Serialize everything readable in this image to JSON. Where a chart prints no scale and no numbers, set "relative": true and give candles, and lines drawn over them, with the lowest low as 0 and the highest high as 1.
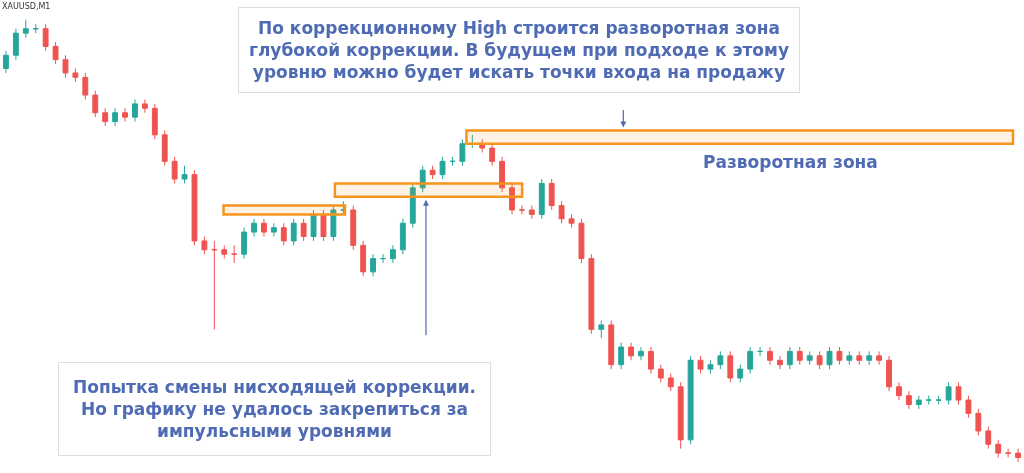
{
  "chart_data": {
    "type": "candlestick",
    "relative": true,
    "categories": [
      null,
      null,
      null,
      null,
      null,
      null,
      null,
      null,
      null,
      null,
      null,
      null,
      null,
      null,
      null,
      null,
      null,
      null,
      null,
      null,
      null,
      null,
      null,
      null,
      null,
      null,
      null,
      null,
      null,
      null,
      null,
      null,
      null,
      null,
      null,
      null,
      null,
      null,
      null,
      null,
      null,
      null,
      null,
      null,
      null,
      null,
      null,
      null,
      null,
      null,
      null,
      null,
      null,
      null,
      null,
      null,
      null,
      null,
      null,
      null,
      null,
      null,
      null,
      null,
      null,
      null,
      null,
      null,
      null,
      null,
      null,
      null,
      null,
      null,
      null,
      null,
      null,
      null,
      null,
      null,
      null,
      null,
      null,
      null,
      null,
      null,
      null,
      null,
      null,
      null,
      null,
      null,
      null,
      null,
      null,
      null,
      null,
      null,
      null,
      null,
      null,
      null,
      null
    ],
    "ohlc": [
      [
        0.89,
        0.93,
        0.88,
        0.92
      ],
      [
        0.92,
        0.98,
        0.91,
        0.97
      ],
      [
        0.97,
        1.0,
        0.96,
        0.98
      ],
      [
        0.98,
        0.99,
        0.97,
        0.98
      ],
      [
        0.98,
        0.99,
        0.93,
        0.94
      ],
      [
        0.94,
        0.95,
        0.9,
        0.91
      ],
      [
        0.91,
        0.92,
        0.87,
        0.88
      ],
      [
        0.88,
        0.89,
        0.86,
        0.87
      ],
      [
        0.87,
        0.88,
        0.82,
        0.83
      ],
      [
        0.83,
        0.84,
        0.78,
        0.79
      ],
      [
        0.79,
        0.8,
        0.76,
        0.77
      ],
      [
        0.77,
        0.8,
        0.76,
        0.79
      ],
      [
        0.79,
        0.8,
        0.77,
        0.78
      ],
      [
        0.78,
        0.82,
        0.77,
        0.81
      ],
      [
        0.81,
        0.82,
        0.79,
        0.8
      ],
      [
        0.8,
        0.81,
        0.73,
        0.74
      ],
      [
        0.74,
        0.75,
        0.67,
        0.68
      ],
      [
        0.68,
        0.69,
        0.63,
        0.64
      ],
      [
        0.64,
        0.67,
        0.63,
        0.65
      ],
      [
        0.65,
        0.66,
        0.49,
        0.5
      ],
      [
        0.5,
        0.51,
        0.47,
        0.48
      ],
      [
        0.48,
        0.5,
        0.3,
        0.48
      ],
      [
        0.48,
        0.49,
        0.46,
        0.47
      ],
      [
        0.47,
        0.49,
        0.45,
        0.47
      ],
      [
        0.47,
        0.53,
        0.46,
        0.52
      ],
      [
        0.52,
        0.55,
        0.51,
        0.54
      ],
      [
        0.54,
        0.55,
        0.51,
        0.52
      ],
      [
        0.52,
        0.54,
        0.51,
        0.53
      ],
      [
        0.53,
        0.54,
        0.49,
        0.5
      ],
      [
        0.5,
        0.55,
        0.49,
        0.54
      ],
      [
        0.54,
        0.55,
        0.5,
        0.51
      ],
      [
        0.51,
        0.57,
        0.5,
        0.56
      ],
      [
        0.56,
        0.57,
        0.5,
        0.51
      ],
      [
        0.51,
        0.58,
        0.5,
        0.57
      ],
      [
        0.57,
        0.59,
        0.56,
        0.57
      ],
      [
        0.57,
        0.58,
        0.48,
        0.49
      ],
      [
        0.49,
        0.5,
        0.42,
        0.43
      ],
      [
        0.43,
        0.47,
        0.42,
        0.46
      ],
      [
        0.46,
        0.47,
        0.45,
        0.46
      ],
      [
        0.46,
        0.49,
        0.45,
        0.48
      ],
      [
        0.48,
        0.55,
        0.47,
        0.54
      ],
      [
        0.54,
        0.63,
        0.53,
        0.62
      ],
      [
        0.62,
        0.67,
        0.61,
        0.66
      ],
      [
        0.66,
        0.67,
        0.64,
        0.65
      ],
      [
        0.65,
        0.69,
        0.64,
        0.68
      ],
      [
        0.68,
        0.69,
        0.67,
        0.68
      ],
      [
        0.68,
        0.73,
        0.67,
        0.72
      ],
      [
        0.72,
        0.74,
        0.71,
        0.72
      ],
      [
        0.72,
        0.73,
        0.7,
        0.71
      ],
      [
        0.71,
        0.72,
        0.67,
        0.68
      ],
      [
        0.68,
        0.69,
        0.61,
        0.62
      ],
      [
        0.62,
        0.63,
        0.56,
        0.57
      ],
      [
        0.57,
        0.58,
        0.56,
        0.57
      ],
      [
        0.57,
        0.58,
        0.55,
        0.56
      ],
      [
        0.56,
        0.64,
        0.55,
        0.63
      ],
      [
        0.63,
        0.64,
        0.57,
        0.58
      ],
      [
        0.58,
        0.59,
        0.54,
        0.55
      ],
      [
        0.55,
        0.56,
        0.53,
        0.54
      ],
      [
        0.54,
        0.55,
        0.45,
        0.46
      ],
      [
        0.46,
        0.47,
        0.29,
        0.3
      ],
      [
        0.3,
        0.32,
        0.28,
        0.31
      ],
      [
        0.31,
        0.32,
        0.21,
        0.22
      ],
      [
        0.22,
        0.27,
        0.21,
        0.26
      ],
      [
        0.26,
        0.27,
        0.23,
        0.24
      ],
      [
        0.24,
        0.26,
        0.23,
        0.25
      ],
      [
        0.25,
        0.26,
        0.2,
        0.21
      ],
      [
        0.21,
        0.22,
        0.18,
        0.19
      ],
      [
        0.19,
        0.2,
        0.16,
        0.17
      ],
      [
        0.17,
        0.18,
        0.03,
        0.05
      ],
      [
        0.05,
        0.24,
        0.04,
        0.23
      ],
      [
        0.23,
        0.24,
        0.2,
        0.21
      ],
      [
        0.21,
        0.23,
        0.2,
        0.22
      ],
      [
        0.22,
        0.25,
        0.21,
        0.24
      ],
      [
        0.24,
        0.25,
        0.18,
        0.19
      ],
      [
        0.19,
        0.22,
        0.18,
        0.21
      ],
      [
        0.21,
        0.26,
        0.2,
        0.25
      ],
      [
        0.25,
        0.26,
        0.24,
        0.25
      ],
      [
        0.25,
        0.26,
        0.22,
        0.23
      ],
      [
        0.23,
        0.24,
        0.21,
        0.22
      ],
      [
        0.22,
        0.26,
        0.21,
        0.25
      ],
      [
        0.25,
        0.26,
        0.22,
        0.23
      ],
      [
        0.23,
        0.25,
        0.22,
        0.24
      ],
      [
        0.24,
        0.25,
        0.21,
        0.22
      ],
      [
        0.22,
        0.26,
        0.21,
        0.25
      ],
      [
        0.25,
        0.26,
        0.22,
        0.23
      ],
      [
        0.23,
        0.25,
        0.22,
        0.24
      ],
      [
        0.24,
        0.25,
        0.22,
        0.23
      ],
      [
        0.23,
        0.25,
        0.22,
        0.24
      ],
      [
        0.24,
        0.25,
        0.22,
        0.23
      ],
      [
        0.23,
        0.24,
        0.16,
        0.17
      ],
      [
        0.17,
        0.18,
        0.14,
        0.15
      ],
      [
        0.15,
        0.16,
        0.12,
        0.13
      ],
      [
        0.13,
        0.15,
        0.12,
        0.14
      ],
      [
        0.14,
        0.15,
        0.13,
        0.14
      ],
      [
        0.14,
        0.15,
        0.13,
        0.14
      ],
      [
        0.14,
        0.18,
        0.13,
        0.17
      ],
      [
        0.17,
        0.18,
        0.13,
        0.14
      ],
      [
        0.14,
        0.15,
        0.1,
        0.11
      ],
      [
        0.11,
        0.12,
        0.06,
        0.07
      ],
      [
        0.07,
        0.08,
        0.03,
        0.04
      ],
      [
        0.04,
        0.05,
        0.01,
        0.02
      ],
      [
        0.02,
        0.03,
        0.01,
        0.02
      ],
      [
        0.02,
        0.03,
        0.0,
        0.01
      ]
    ],
    "bands": [
      {
        "axis": "y",
        "from": 0.56,
        "to": 0.58,
        "color": "#f7941d"
      },
      {
        "axis": "y",
        "from": 0.6,
        "to": 0.63,
        "color": "#f7941d"
      },
      {
        "axis": "y",
        "from": 0.72,
        "to": 0.75,
        "color": "#f7941d",
        "label": "Разворотная зона"
      }
    ],
    "annotations": [
      "XAUUSD,M1",
      "По коррекционному High строится разворотная зона\nглубокой коррекции. В будущем при подходе к этому\nуровню можно будет искать точки входа на продажу",
      "Попытка смены нисходящей коррекции.\nНо графику не удалось закрепиться за\nимпульсными уровнями"
    ]
  }
}
